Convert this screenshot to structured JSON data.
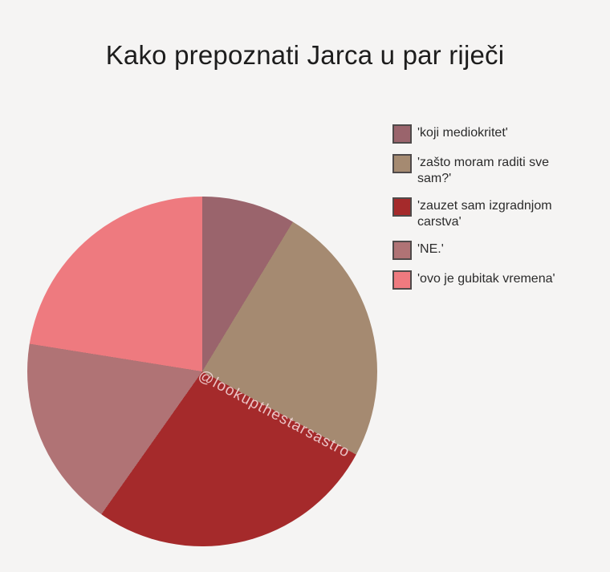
{
  "page": {
    "background": "#f5f4f3",
    "watermark": "@lookupthestarsastro"
  },
  "chart_data": {
    "type": "pie",
    "title": "Kako prepoznati Jarca u par riječi",
    "legend_position": "upper right",
    "start_angle": "12 o'clock, clockwise",
    "boundaries_deg": [
      0,
      31.2,
      118.4,
      215.2,
      279.1,
      360
    ],
    "slices": [
      {
        "label": "'koji mediokritet'",
        "value_percent": 8.7,
        "color": "#9a646c"
      },
      {
        "label": "'zašto moram raditi sve sam?'",
        "value_percent": 24.2,
        "color": "#a58a71"
      },
      {
        "label": "'zauzet sam izgradnjom carstva'",
        "value_percent": 26.9,
        "color": "#a52a2b"
      },
      {
        "label": "'NE.'",
        "value_percent": 17.7,
        "color": "#b07375"
      },
      {
        "label": "'ovo je gubitak vremena'",
        "value_percent": 22.5,
        "color": "#ee7a7f"
      }
    ],
    "annotations": [
      "@lookupthestarsastro"
    ],
    "legend_swatch_border_color": "#4f4a4a",
    "text_color": "#2b2b2b"
  }
}
